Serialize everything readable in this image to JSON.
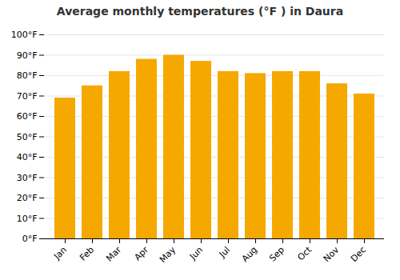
{
  "chart_data": {
    "type": "bar",
    "title": "Average monthly temperatures (°F ) in Daura",
    "categories": [
      "Jan",
      "Feb",
      "Mar",
      "Apr",
      "May",
      "Jun",
      "Jul",
      "Aug",
      "Sep",
      "Oct",
      "Nov",
      "Dec"
    ],
    "values": [
      69,
      75,
      82,
      88,
      90,
      87,
      82,
      81,
      82,
      82,
      76,
      71
    ],
    "color": "#F5A800",
    "ylim": [
      0,
      100
    ],
    "yticks": [
      {
        "value": 0,
        "label": "0°F"
      },
      {
        "value": 10,
        "label": "10°F"
      },
      {
        "value": 20,
        "label": "20°F"
      },
      {
        "value": 30,
        "label": "30°F"
      },
      {
        "value": 40,
        "label": "40°F"
      },
      {
        "value": 50,
        "label": "50°F"
      },
      {
        "value": 60,
        "label": "60°F"
      },
      {
        "value": 70,
        "label": "70°F"
      },
      {
        "value": 80,
        "label": "80°F"
      },
      {
        "value": 90,
        "label": "90°F"
      },
      {
        "value": 100,
        "label": "100°F"
      }
    ],
    "grid": true
  }
}
